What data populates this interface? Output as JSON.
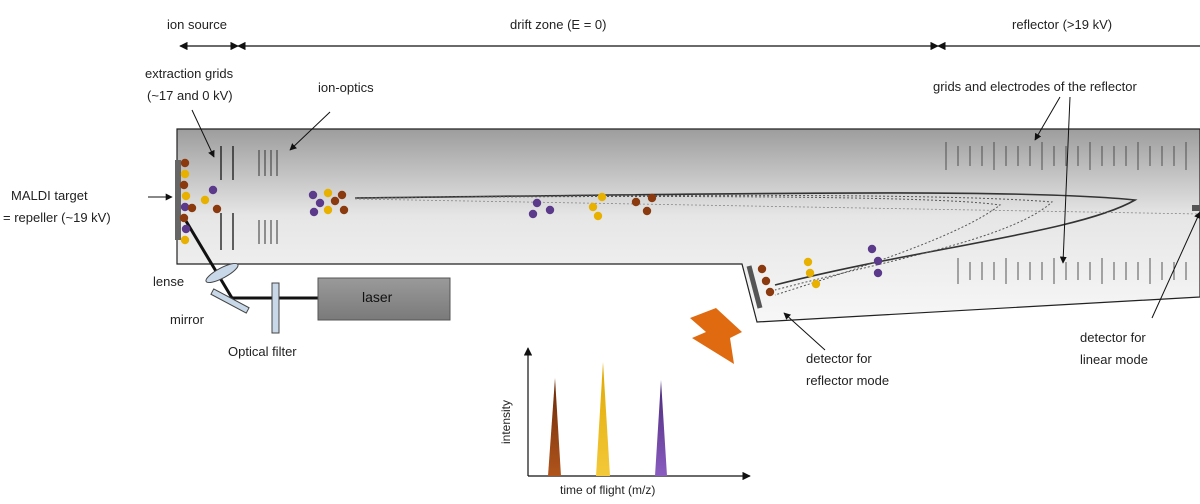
{
  "sections": {
    "ion_source": "ion source",
    "drift_zone": "drift zone (E = 0)",
    "reflector": "reflector (>19 kV)"
  },
  "labels": {
    "extraction_grids_1": "extraction grids",
    "extraction_grids_2": "(~17 and 0 kV)",
    "ion_optics": "ion-optics",
    "grids_electrodes": "grids and electrodes of the  reflector",
    "maldi_target_1": "MALDI target",
    "maldi_target_2": "= repeller (~19 kV)",
    "lense": "lense",
    "mirror": "mirror",
    "laser": "laser",
    "optical_filter": "Optical filter",
    "detector_reflector_1": "detector  for",
    "detector_reflector_2": "reflector mode",
    "detector_linear_1": "detector  for",
    "detector_linear_2": "linear mode"
  },
  "spectrum": {
    "ylabel": "intensity",
    "xlabel": "time of flight (m/z)"
  },
  "colors": {
    "brown": "#8B3A10",
    "gold": "#E8B100",
    "purple": "#5B3A8C",
    "arrow_orange": "#E06A10",
    "tube_dark": "#a8a8a8",
    "tube_light": "#f4f4f4"
  }
}
